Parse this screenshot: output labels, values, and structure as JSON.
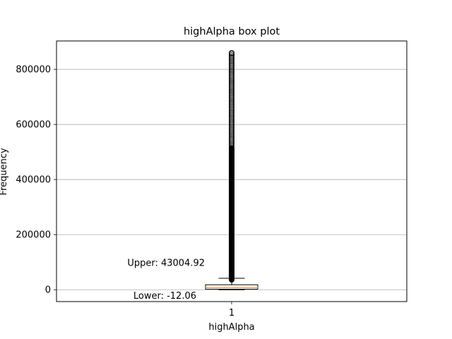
{
  "chart_data": {
    "type": "box",
    "title": "highAlpha box plot",
    "xlabel": "highAlpha",
    "ylabel": "Frequency",
    "categories": [
      "1"
    ],
    "ylim": [
      -43000,
      903000
    ],
    "yticks": [
      0,
      200000,
      400000,
      600000,
      800000
    ],
    "ytick_labels": [
      "0",
      "200000",
      "400000",
      "600000",
      "800000"
    ],
    "grid": "y",
    "box": {
      "whisker_low": 0,
      "q1": 2000,
      "median": 8000,
      "q3": 18000,
      "whisker_high": 41500
    },
    "outlier_range": [
      36000,
      860000
    ],
    "dense_outlier_max": 515000,
    "annotations": [
      {
        "text": "Upper: 43004.92",
        "value": 43004.92
      },
      {
        "text": "Lower: -12.06",
        "value": -12.06
      }
    ],
    "colors": {
      "box": "#000000",
      "median": "#f4a460",
      "outlier": "#000000",
      "grid": "#b0b0b0"
    }
  }
}
